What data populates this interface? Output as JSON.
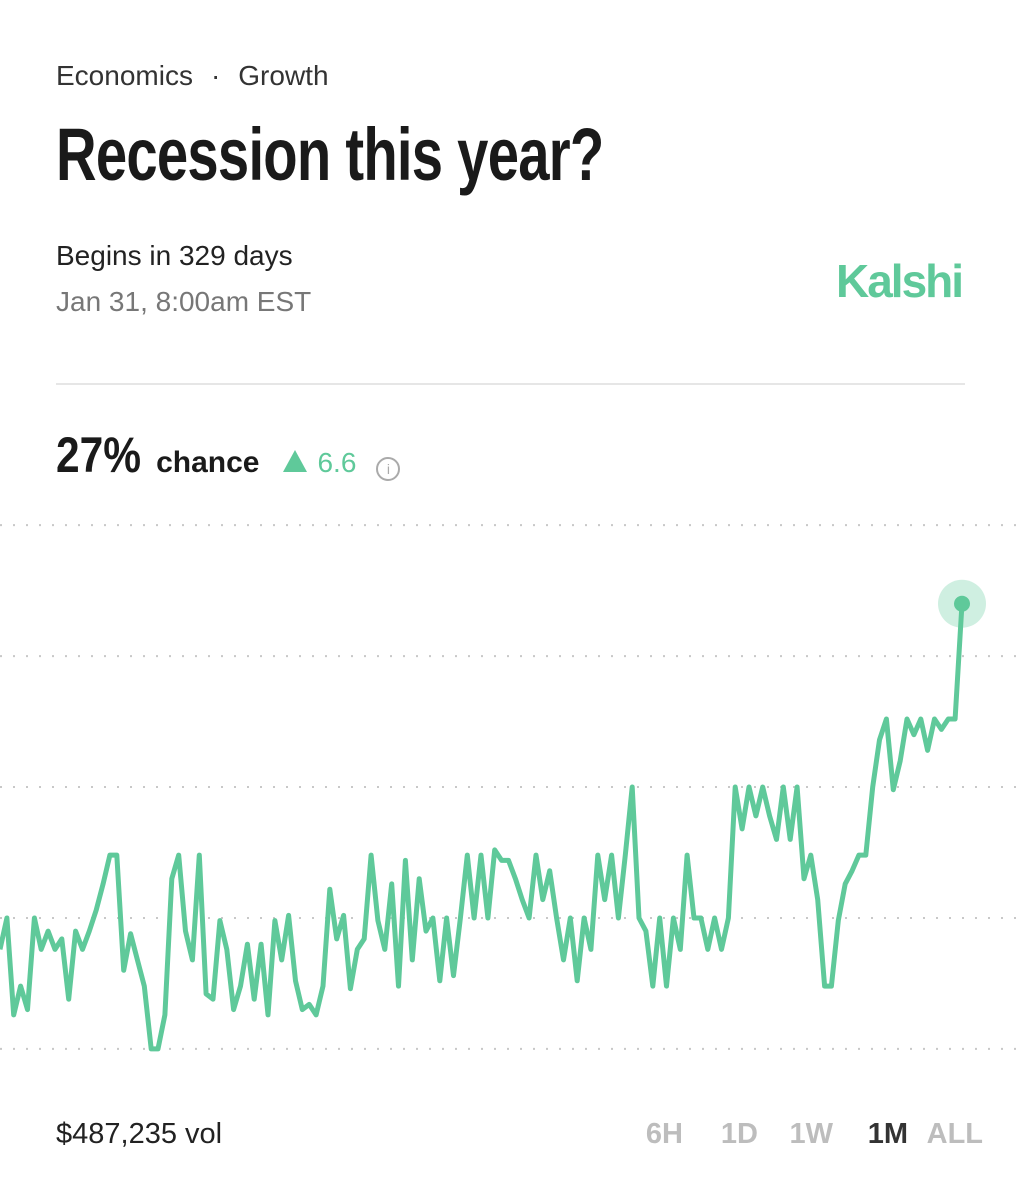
{
  "header": {
    "category": "Economics",
    "separator": "·",
    "subcategory": "Growth",
    "title": "Recession this year?",
    "begins": "Begins in 329 days",
    "date": "Jan 31, 8:00am EST",
    "brand": "Kalshi"
  },
  "summary": {
    "probability": "27%",
    "label": "chance",
    "change": "6.6"
  },
  "chart_data": {
    "type": "line",
    "series": [
      {
        "color": "#5fc99a",
        "values": [
          13.8,
          15.0,
          11.3,
          12.4,
          11.5,
          15.0,
          13.8,
          14.5,
          13.8,
          14.2,
          11.9,
          14.5,
          13.8,
          14.5,
          15.3,
          16.3,
          17.4,
          17.4,
          13.0,
          14.4,
          13.4,
          12.4,
          10.0,
          10.0,
          11.3,
          16.5,
          17.4,
          14.5,
          13.4,
          17.4,
          12.1,
          11.9,
          14.9,
          13.8,
          11.5,
          12.4,
          14.0,
          11.9,
          14.0,
          11.3,
          14.9,
          13.4,
          15.1,
          12.6,
          11.5,
          11.7,
          11.3,
          12.4,
          16.1,
          14.2,
          15.1,
          12.3,
          13.8,
          14.2,
          17.4,
          14.9,
          13.8,
          16.3,
          12.4,
          17.2,
          13.4,
          16.5,
          14.5,
          15.0,
          12.6,
          15.0,
          12.8,
          15.0,
          17.4,
          15.0,
          17.4,
          15.0,
          17.6,
          17.2,
          17.2,
          16.5,
          15.7,
          15.0,
          17.4,
          15.7,
          16.8,
          15.0,
          13.4,
          15.0,
          12.6,
          15.0,
          13.8,
          17.4,
          15.7,
          17.4,
          15.0,
          17.4,
          20.0,
          15.0,
          14.5,
          12.4,
          15.0,
          12.4,
          15.0,
          13.8,
          17.4,
          15.0,
          15.0,
          13.8,
          15.0,
          13.8,
          15.0,
          20.0,
          18.4,
          20.0,
          18.9,
          20.0,
          18.9,
          18.0,
          20.0,
          18.0,
          20.0,
          16.5,
          17.4,
          15.7,
          12.4,
          12.4,
          14.9,
          16.3,
          16.8,
          17.4,
          17.4,
          20.0,
          21.8,
          22.6,
          19.9,
          21.0,
          22.6,
          22.0,
          22.6,
          21.4,
          22.6,
          22.2,
          22.6,
          22.6,
          27
        ]
      }
    ],
    "ylim": [
      9.5,
      31
    ],
    "yticks": [
      10,
      15,
      20,
      25,
      30
    ],
    "grid": true
  },
  "footer": {
    "volume": "$487,235 vol",
    "timeframes": [
      "6H",
      "1D",
      "1W",
      "1M",
      "ALL"
    ],
    "selected": 3
  }
}
